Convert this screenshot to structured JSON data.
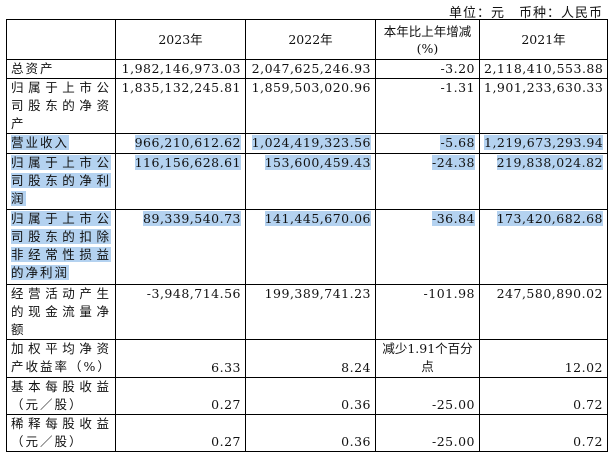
{
  "unit_note": "单位：元　币种：人民币",
  "headers": [
    "",
    "2023年",
    "2022年",
    "本年比上年增减(%)",
    "2021年"
  ],
  "rows": [
    {
      "label": "总资产",
      "v2023": "1,982,146,973.03",
      "v2022": "2,047,625,246.93",
      "change": "-3.20",
      "v2021": "2,118,410,553.88"
    },
    {
      "label": "归属于上市公司股东的净资产",
      "v2023": "1,835,132,245.81",
      "v2022": "1,859,503,020.96",
      "change": "-1.31",
      "v2021": "1,901,233,630.33"
    },
    {
      "label": "营业收入",
      "v2023": "966,210,612.62",
      "v2022": "1,024,419,323.56",
      "change": "-5.68",
      "v2021": "1,219,673,293.94"
    },
    {
      "label": "归属于上市公司股东的净利润",
      "v2023": "116,156,628.61",
      "v2022": "153,600,459.43",
      "change": "-24.38",
      "v2021": "219,838,024.82"
    },
    {
      "label": "归属于上市公司股东的扣除非经常性损益的净利润",
      "v2023": "89,339,540.73",
      "v2022": "141,445,670.06",
      "change": "-36.84",
      "v2021": "173,420,682.68"
    },
    {
      "label": "经营活动产生的现金流量净额",
      "v2023": "-3,948,714.56",
      "v2022": "199,389,741.23",
      "change": "-101.98",
      "v2021": "247,580,890.02"
    },
    {
      "label": "加权平均净资产收益率（%）",
      "v2023": "6.33",
      "v2022": "8.24",
      "change": "减少1.91个百分点",
      "v2021": "12.02"
    },
    {
      "label": "基本每股收益（元／股）",
      "v2023": "0.27",
      "v2022": "0.36",
      "change": "-25.00",
      "v2021": "0.72"
    },
    {
      "label": "稀释每股收益（元／股）",
      "v2023": "0.27",
      "v2022": "0.36",
      "change": "-25.00",
      "v2021": "0.72"
    }
  ]
}
